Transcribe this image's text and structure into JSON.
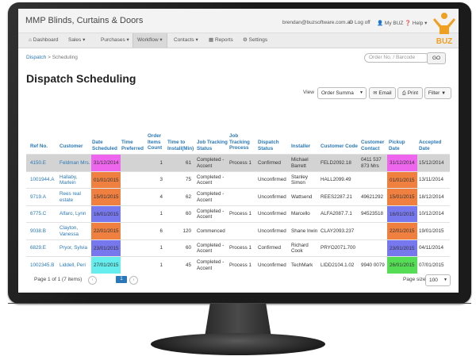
{
  "app": {
    "brand": "MMP Blinds, Curtains & Doors",
    "user_email": "brendan@buzsoftware.com.au",
    "logoff": "Log off",
    "my_buz": "My BUZ",
    "help": "Help",
    "logo_text": "BUZ"
  },
  "nav": [
    {
      "label": "Dashboard",
      "icon": "home-icon"
    },
    {
      "label": "Sales",
      "caret": true
    },
    {
      "label": "Purchases",
      "caret": true
    },
    {
      "label": "Workflow",
      "caret": true,
      "active": true
    },
    {
      "label": "Contacts",
      "caret": true
    },
    {
      "label": "Reports",
      "icon": "chart-icon"
    },
    {
      "label": "Settings",
      "icon": "gears-icon"
    }
  ],
  "breadcrumb": {
    "root": "Dispatch",
    "separator": ">",
    "current": "Scheduling"
  },
  "search": {
    "placeholder": "Order No. / Barcode",
    "go": "GO"
  },
  "page_title": "Dispatch Scheduling",
  "toolbar": {
    "view_label": "View",
    "view_value": "Order Summa",
    "email": "Email",
    "print": "Print",
    "filter": "Filter"
  },
  "columns": [
    "Ref No.",
    "Customer",
    "Date Scheduled",
    "Time Preferred",
    "Order Items Count",
    "Time to Install(Min)",
    "Job Tracking Status",
    "Job Tracking Process",
    "Dispatch Status",
    "Installer",
    "Customer Code",
    "Customer Contact",
    "Pickup Date",
    "Accepted Date"
  ],
  "rows": [
    {
      "ref": "4150.E",
      "customer": "Feldman Mrs.",
      "date_scheduled": "31/12/2014",
      "date_color": "#ee66ee",
      "time_preferred": "",
      "items": "1",
      "install_min": "61",
      "jt_status": "Completed - Accent",
      "jt_process": "Process 1",
      "dispatch": "Confirmed",
      "installer": "Michael Barrett",
      "code": "FELD2092.18",
      "contact": "0411 537 873 Mrs",
      "pickup": "31/12/2014",
      "pickup_color": "#ee66ee",
      "accepted": "15/12/2014",
      "selected": true
    },
    {
      "ref": "1001944.A",
      "customer": "Hallaby, Marlein",
      "date_scheduled": "01/01/2015",
      "date_color": "#f08040",
      "time_preferred": "",
      "items": "3",
      "install_min": "75",
      "jt_status": "Completed - Accent",
      "jt_process": "",
      "dispatch": "Unconfirmed",
      "installer": "Stanley Simon",
      "code": "HALL2099.49",
      "contact": "",
      "pickup": "01/01/2015",
      "pickup_color": "#f08040",
      "accepted": "13/11/2014",
      "selected": false
    },
    {
      "ref": "9719.A",
      "customer": "Rees real estate",
      "date_scheduled": "15/01/2015",
      "date_color": "#f08040",
      "time_preferred": "",
      "items": "4",
      "install_min": "62",
      "jt_status": "Completed - Accent",
      "jt_process": "",
      "dispatch": "Unconfirmed",
      "installer": "Wattsend",
      "code": "REES2287.21",
      "contact": "49621292",
      "pickup": "15/01/2015",
      "pickup_color": "#f08040",
      "accepted": "18/12/2014",
      "selected": false
    },
    {
      "ref": "6775.C",
      "customer": "Alfaro, Lynn",
      "date_scheduled": "16/01/2015",
      "date_color": "#7777ee",
      "time_preferred": "",
      "items": "1",
      "install_min": "60",
      "jt_status": "Completed - Accent",
      "jt_process": "Process 1",
      "dispatch": "Unconfirmed",
      "installer": "Marcello",
      "code": "ALFA2087.7.1",
      "contact": "94523518",
      "pickup": "16/01/2015",
      "pickup_color": "#7777ee",
      "accepted": "10/12/2014",
      "selected": false
    },
    {
      "ref": "9038.B",
      "customer": "Clayton, Vanessa",
      "date_scheduled": "22/01/2015",
      "date_color": "#f08040",
      "time_preferred": "",
      "items": "6",
      "install_min": "120",
      "jt_status": "Commenced",
      "jt_process": "",
      "dispatch": "Unconfirmed",
      "installer": "Shane Irwin",
      "code": "CLAY2093.237",
      "contact": "",
      "pickup": "22/01/2015",
      "pickup_color": "#f08040",
      "accepted": "19/01/2015",
      "selected": false
    },
    {
      "ref": "6829.E",
      "customer": "Pryor, Sylvia",
      "date_scheduled": "23/01/2015",
      "date_color": "#7777ee",
      "time_preferred": "",
      "items": "1",
      "install_min": "60",
      "jt_status": "Completed - Accent",
      "jt_process": "Process 1",
      "dispatch": "Confirmed",
      "installer": "Richard Cook",
      "code": "PRYO2071.700",
      "contact": "",
      "pickup": "23/01/2015",
      "pickup_color": "#7777ee",
      "accepted": "04/11/2014",
      "selected": false
    },
    {
      "ref": "1002345.B",
      "customer": "Liddell, Peri",
      "date_scheduled": "27/01/2015",
      "date_color": "#66eeee",
      "time_preferred": "",
      "items": "1",
      "install_min": "45",
      "jt_status": "Completed - Accent",
      "jt_process": "Process 1",
      "dispatch": "Unconfirmed",
      "installer": "TechMark",
      "code": "LIDD2104.1.02",
      "contact": "9940 0079",
      "pickup": "26/01/2015",
      "pickup_color": "#55dd55",
      "accepted": "07/01/2015",
      "selected": false
    }
  ],
  "footer": {
    "page_info": "Page 1 of 1 (7 items)",
    "prev": "‹",
    "current_page": "1",
    "next": "›",
    "page_size_label": "Page size:",
    "page_size": "100"
  }
}
